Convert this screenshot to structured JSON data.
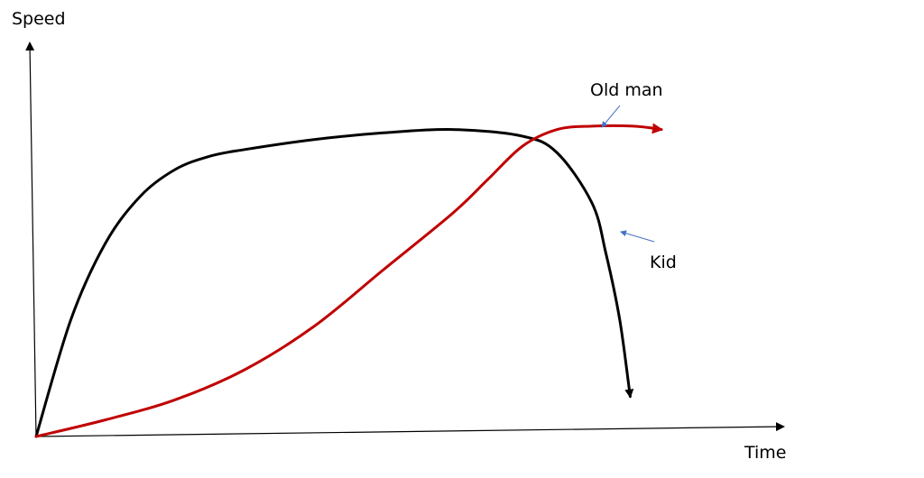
{
  "chart_data": {
    "type": "line",
    "xlabel": "Time",
    "ylabel": "Speed",
    "grid": false,
    "colors": {
      "axis": "#000000",
      "pointer": "#4472c4"
    },
    "series": [
      {
        "name": "Kid",
        "color": "#000000",
        "x": [
          0,
          0.05,
          0.1,
          0.15,
          0.2,
          0.25,
          0.3,
          0.4,
          0.5,
          0.6,
          0.7,
          0.75,
          0.8,
          0.82,
          0.84,
          0.855
        ],
        "y": [
          0,
          0.35,
          0.58,
          0.72,
          0.8,
          0.84,
          0.86,
          0.89,
          0.91,
          0.92,
          0.9,
          0.85,
          0.7,
          0.55,
          0.35,
          0.12
        ]
      },
      {
        "name": "Old man",
        "color": "#c00000",
        "x": [
          0,
          0.1,
          0.2,
          0.3,
          0.4,
          0.5,
          0.6,
          0.65,
          0.7,
          0.75,
          0.8,
          0.86,
          0.9
        ],
        "y": [
          0,
          0.05,
          0.11,
          0.2,
          0.33,
          0.5,
          0.67,
          0.77,
          0.87,
          0.92,
          0.93,
          0.93,
          0.92
        ]
      }
    ],
    "annotations": [
      {
        "label": "Old man",
        "target_series": "Old man"
      },
      {
        "label": "Kid",
        "target_series": "Kid"
      }
    ]
  }
}
